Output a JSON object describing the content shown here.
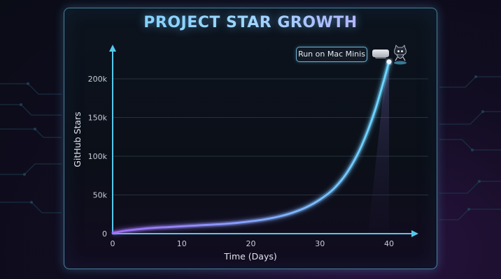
{
  "chart_data": {
    "type": "line",
    "title": "PROJECT STAR GROWTH",
    "xlabel": "Time (Days)",
    "ylabel": "GitHub Stars",
    "xlim": [
      0,
      40
    ],
    "ylim": [
      0,
      220000
    ],
    "x_ticks": [
      0,
      10,
      20,
      30,
      40
    ],
    "x_tick_labels": [
      "0",
      "10",
      "20",
      "30",
      "40"
    ],
    "y_ticks": [
      0,
      50000,
      100000,
      150000,
      200000
    ],
    "y_tick_labels": [
      "0",
      "50k",
      "100k",
      "150k",
      "200k"
    ],
    "grid": true,
    "series": [
      {
        "x": [
          0,
          2,
          4,
          6,
          8,
          10,
          12,
          14,
          16,
          18,
          20,
          22,
          24,
          26,
          28,
          30,
          32,
          34,
          36,
          38,
          40
        ],
        "y": [
          1000,
          4000,
          6000,
          7500,
          8500,
          9500,
          10500,
          11500,
          12500,
          14000,
          16000,
          18500,
          22000,
          27000,
          34000,
          44000,
          58000,
          80000,
          113000,
          160000,
          222000
        ]
      }
    ],
    "annotations": [
      {
        "text": "Run on Mac Minis",
        "x": 40,
        "y": 222000
      }
    ],
    "colors": {
      "line_start": "#a06cf5",
      "line_end": "#6ad8ff",
      "axis": "#56c8ec",
      "grid": "#26323e"
    }
  },
  "icons": [
    "mac-mini-icon",
    "octocat-mascot-icon"
  ]
}
